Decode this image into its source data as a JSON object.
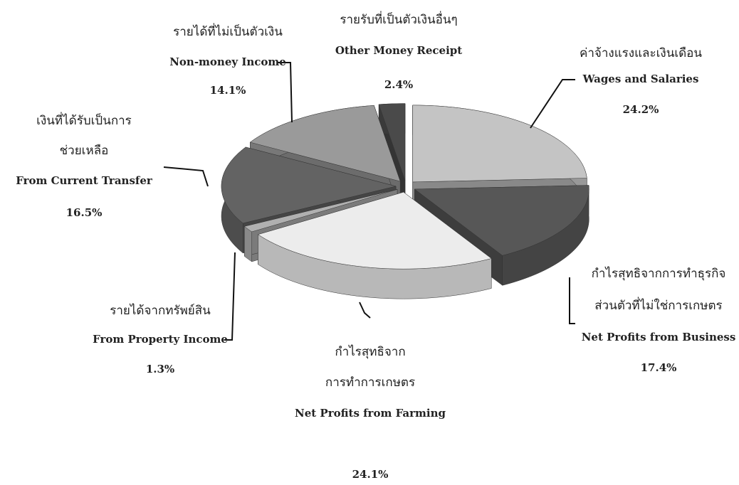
{
  "chart_data": {
    "type": "pie",
    "categories": [
      "Wages and Salaries",
      "Net Profits from Business",
      "Net Profits from Farming",
      "From Property Income",
      "From Current Transfer",
      "Non-money Income",
      "Other Money Receipt"
    ],
    "thai_labels": [
      [
        "ค่าจ้างแรงและเงินเดือน"
      ],
      [
        "กำไรสุทธิจากการทำธุรกิจ",
        "ส่วนตัวที่ไม่ใช่การเกษตร"
      ],
      [
        "กำไรสุทธิจาก",
        "การทำการเกษตร"
      ],
      [
        "รายได้จากทรัพย์สิน"
      ],
      [
        "เงินที่ได้รับเป็นการ",
        "ช่วยเหลือ"
      ],
      [
        "รายได้ที่ไม่เป็นตัวเงิน"
      ],
      [
        "รายรับที่เป็นตัวเงินอื่นๆ"
      ]
    ],
    "values": [
      24.2,
      17.4,
      24.1,
      1.3,
      16.5,
      14.1,
      2.4
    ],
    "value_labels": [
      "24.2%",
      "17.4%",
      "24.1%",
      "1.3%",
      "16.5%",
      "14.1%",
      "2.4%"
    ],
    "colors": [
      "#c4c4c4",
      "#575757",
      "#ececec",
      "#b0b0b0",
      "#636363",
      "#9a9a9a",
      "#4a4a4a"
    ]
  }
}
